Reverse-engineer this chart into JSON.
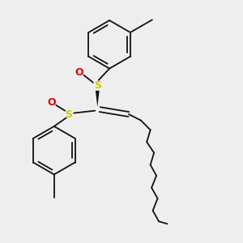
{
  "background_color": "#eeeeee",
  "bond_color": "#111111",
  "sulfur_color": "#cccc00",
  "oxygen_color": "#dd0000",
  "line_width": 1.3,
  "figsize": [
    3.0,
    3.0
  ],
  "dpi": 100,
  "xlim": [
    0,
    10
  ],
  "ylim": [
    0,
    10
  ]
}
